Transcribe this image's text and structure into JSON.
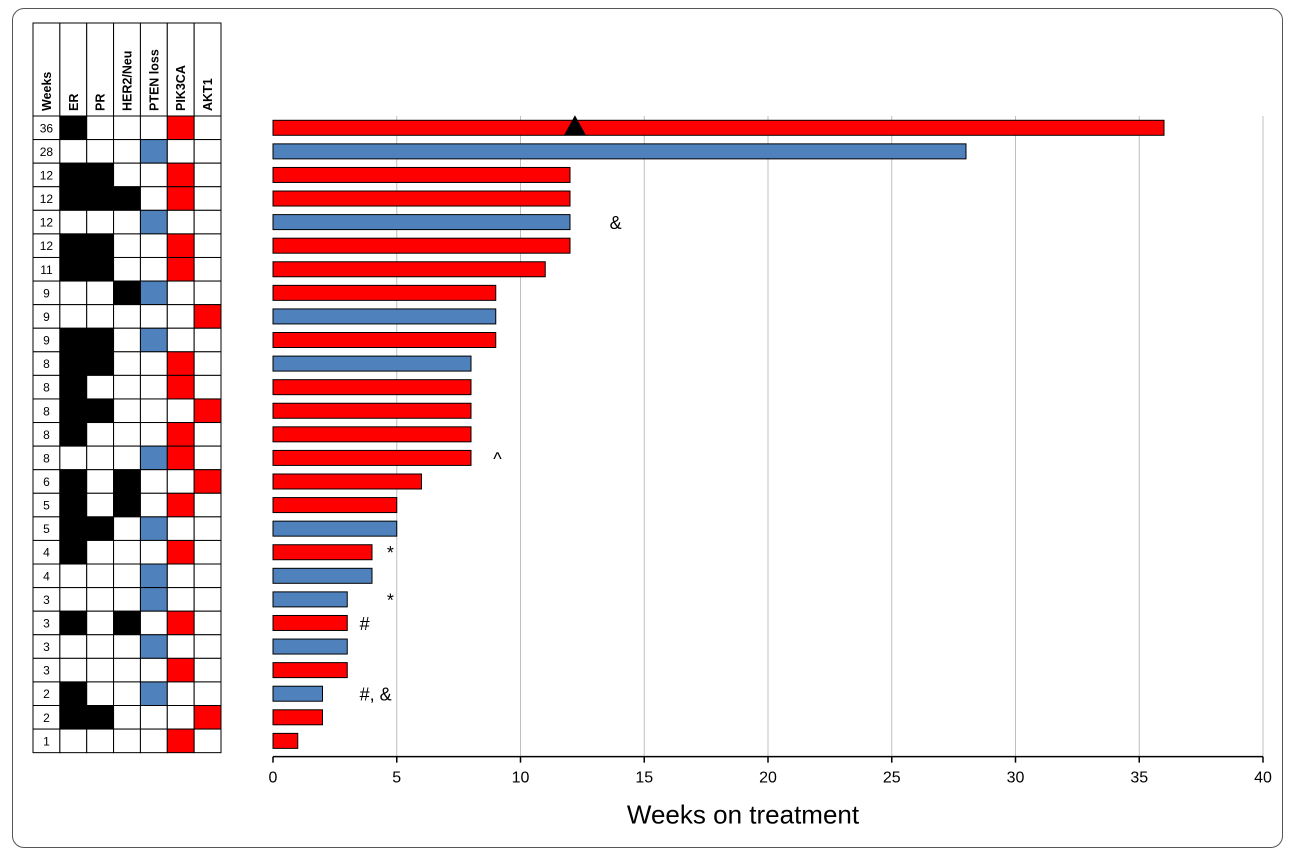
{
  "table": {
    "headers": [
      "Weeks",
      "ER",
      "PR",
      "HER2/Neu",
      "PTEN loss",
      "PIK3CA",
      "AKT1"
    ],
    "rows": [
      {
        "weeks": "36",
        "cells": [
          "B",
          "",
          "",
          "",
          "R",
          ""
        ]
      },
      {
        "weeks": "28",
        "cells": [
          "",
          "",
          "",
          "U",
          "",
          ""
        ]
      },
      {
        "weeks": "12",
        "cells": [
          "B",
          "B",
          "",
          "",
          "R",
          ""
        ]
      },
      {
        "weeks": "12",
        "cells": [
          "B",
          "B",
          "B",
          "",
          "R",
          ""
        ]
      },
      {
        "weeks": "12",
        "cells": [
          "",
          "",
          "",
          "U",
          "",
          ""
        ]
      },
      {
        "weeks": "12",
        "cells": [
          "B",
          "B",
          "",
          "",
          "R",
          ""
        ]
      },
      {
        "weeks": "11",
        "cells": [
          "B",
          "B",
          "",
          "",
          "R",
          ""
        ]
      },
      {
        "weeks": "9",
        "cells": [
          "",
          "",
          "B",
          "U",
          "",
          ""
        ]
      },
      {
        "weeks": "9",
        "cells": [
          "",
          "",
          "",
          "",
          "",
          "R"
        ]
      },
      {
        "weeks": "9",
        "cells": [
          "B",
          "B",
          "",
          "U",
          "",
          ""
        ]
      },
      {
        "weeks": "8",
        "cells": [
          "B",
          "B",
          "",
          "",
          "R",
          ""
        ]
      },
      {
        "weeks": "8",
        "cells": [
          "B",
          "",
          "",
          "",
          "R",
          ""
        ]
      },
      {
        "weeks": "8",
        "cells": [
          "B",
          "B",
          "",
          "",
          "",
          "R"
        ]
      },
      {
        "weeks": "8",
        "cells": [
          "B",
          "",
          "",
          "",
          "R",
          ""
        ]
      },
      {
        "weeks": "8",
        "cells": [
          "",
          "",
          "",
          "U",
          "R",
          ""
        ]
      },
      {
        "weeks": "6",
        "cells": [
          "B",
          "",
          "B",
          "",
          "",
          "R"
        ]
      },
      {
        "weeks": "5",
        "cells": [
          "B",
          "",
          "B",
          "",
          "R",
          ""
        ]
      },
      {
        "weeks": "5",
        "cells": [
          "B",
          "B",
          "",
          "U",
          "",
          ""
        ]
      },
      {
        "weeks": "4",
        "cells": [
          "B",
          "",
          "",
          "",
          "R",
          ""
        ]
      },
      {
        "weeks": "4",
        "cells": [
          "",
          "",
          "",
          "U",
          "",
          ""
        ]
      },
      {
        "weeks": "3",
        "cells": [
          "",
          "",
          "",
          "U",
          "",
          ""
        ]
      },
      {
        "weeks": "3",
        "cells": [
          "B",
          "",
          "B",
          "",
          "R",
          ""
        ]
      },
      {
        "weeks": "3",
        "cells": [
          "",
          "",
          "",
          "U",
          "",
          ""
        ]
      },
      {
        "weeks": "3",
        "cells": [
          "",
          "",
          "",
          "",
          "R",
          ""
        ]
      },
      {
        "weeks": "2",
        "cells": [
          "B",
          "",
          "",
          "U",
          "",
          ""
        ]
      },
      {
        "weeks": "2",
        "cells": [
          "B",
          "B",
          "",
          "",
          "",
          "R"
        ]
      },
      {
        "weeks": "1",
        "cells": [
          "",
          "",
          "",
          "",
          "R",
          ""
        ]
      }
    ]
  },
  "chart_data": {
    "type": "bar",
    "orientation": "horizontal",
    "xlabel": "Weeks on treatment",
    "xlim": [
      0,
      40
    ],
    "xticks": [
      0,
      5,
      10,
      15,
      20,
      25,
      30,
      35,
      40
    ],
    "grid": "vertical",
    "values": [
      36,
      28,
      12,
      12,
      12,
      12,
      11,
      9,
      9,
      9,
      8,
      8,
      8,
      8,
      8,
      6,
      5,
      5,
      4,
      4,
      3,
      3,
      3,
      3,
      2,
      2,
      1
    ],
    "bar_colors": [
      "red",
      "blue",
      "red",
      "red",
      "blue",
      "red",
      "red",
      "red",
      "blue",
      "red",
      "blue",
      "red",
      "red",
      "red",
      "red",
      "red",
      "red",
      "blue",
      "red",
      "blue",
      "blue",
      "red",
      "blue",
      "red",
      "blue",
      "red",
      "red"
    ],
    "annotations": [
      {
        "row": 4,
        "text": "&",
        "x": 13.6
      },
      {
        "row": 14,
        "text": "^",
        "x": 8.9
      },
      {
        "row": 18,
        "text": "*",
        "x": 4.6
      },
      {
        "row": 20,
        "text": "*",
        "x": 4.6
      },
      {
        "row": 21,
        "text": "#",
        "x": 3.5
      },
      {
        "row": 24,
        "text": "#, &",
        "x": 3.5
      }
    ],
    "marker": {
      "row": 0,
      "x": 12.2,
      "shape": "triangle"
    }
  },
  "colors": {
    "red": "#ff0000",
    "blue": "#4f81bd",
    "black": "#000000",
    "grid": "#bfbfbf"
  }
}
